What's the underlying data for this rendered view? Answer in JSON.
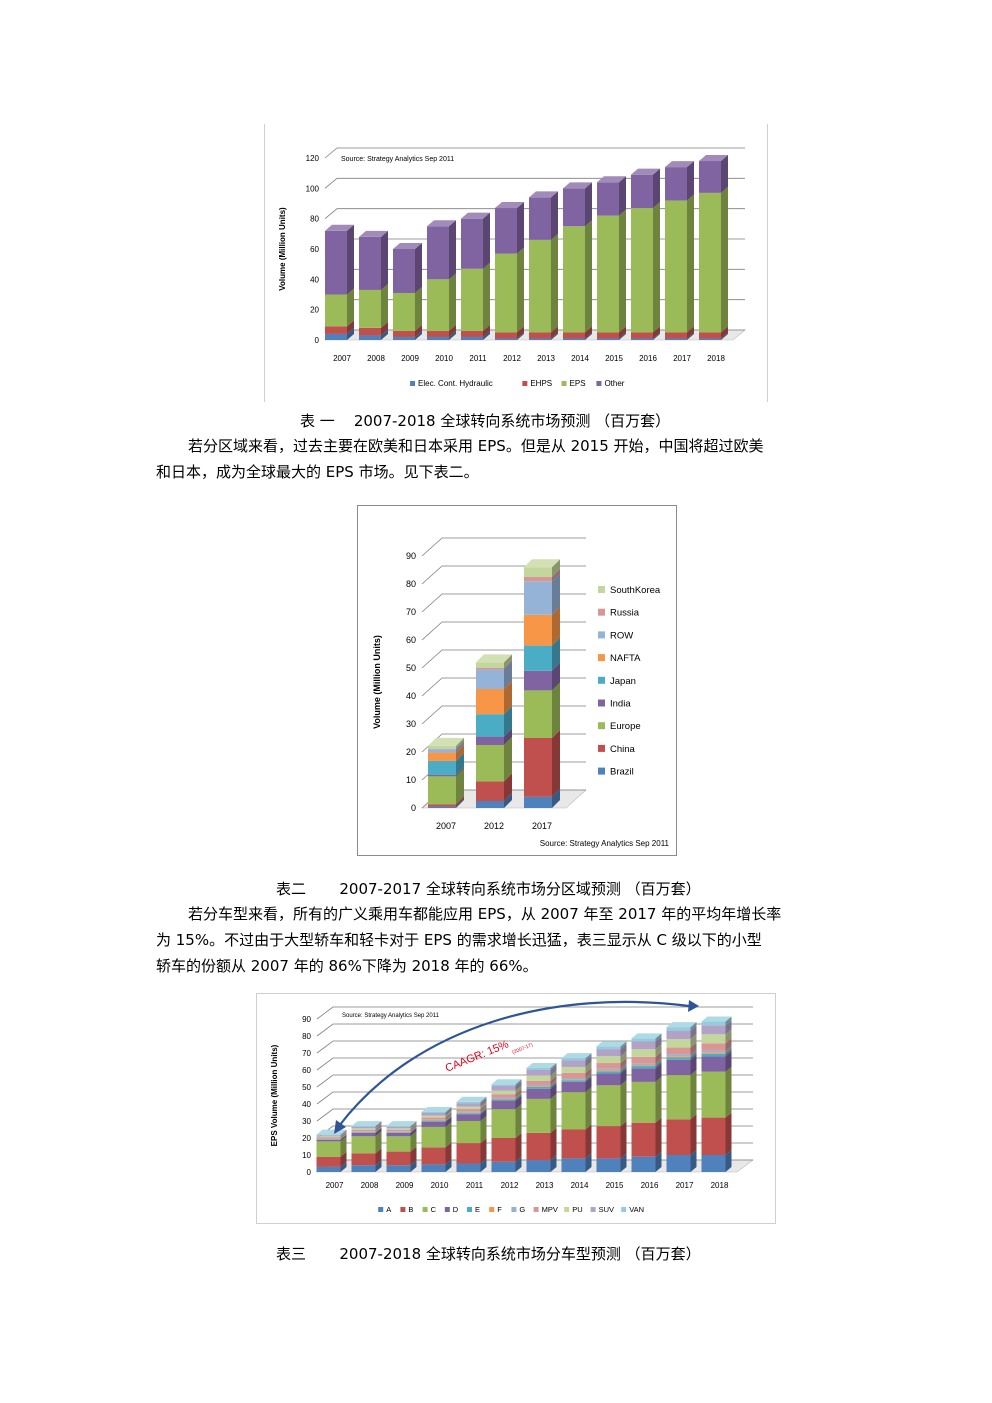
{
  "figures": [
    {
      "caption": "表 一    2007-2018 全球转向系统市场预测 （百万套）",
      "chart_data": {
        "type": "bar",
        "stacked": true,
        "annotation": "Source: Strategy Analytics Sep 2011",
        "ylabel": "Volume (Million Units)",
        "ylim": [
          0,
          120
        ],
        "yticks": [
          0,
          20,
          40,
          60,
          80,
          100,
          120
        ],
        "categories": [
          "2007",
          "2008",
          "2009",
          "2010",
          "2011",
          "2012",
          "2013",
          "2014",
          "2015",
          "2016",
          "2017",
          "2018"
        ],
        "series": [
          {
            "name": "Elec. Cont. Hydraulic",
            "color": "#4f81bd",
            "values": [
              4,
              3,
              2,
              2,
              2,
              1,
              1,
              1,
              1,
              1,
              1,
              1
            ]
          },
          {
            "name": "EHPS",
            "color": "#c0504d",
            "values": [
              5,
              5,
              4,
              4,
              4,
              4,
              4,
              4,
              4,
              4,
              4,
              4
            ]
          },
          {
            "name": "EPS",
            "color": "#9bbb59",
            "values": [
              21,
              25,
              25,
              34,
              41,
              52,
              61,
              70,
              77,
              82,
              87,
              92
            ]
          },
          {
            "name": "Other",
            "color": "#8064a2",
            "values": [
              42,
              35,
              29,
              35,
              33,
              30,
              28,
              25,
              22,
              22,
              22,
              21
            ]
          }
        ],
        "legend": "bottom",
        "grid": true
      }
    },
    {
      "caption": "表二       2007-2017 全球转向系统市场分区域预测 （百万套）",
      "chart_data": {
        "type": "bar",
        "stacked": true,
        "annotation": "Source: Strategy Analytics Sep 2011",
        "ylabel": "Volume (Million Units)",
        "ylim": [
          0,
          90
        ],
        "yticks": [
          0,
          10,
          20,
          30,
          40,
          50,
          60,
          70,
          80,
          90
        ],
        "categories": [
          "2007",
          "2012",
          "2017"
        ],
        "series": [
          {
            "name": "Brazil",
            "color": "#4f81bd",
            "values": [
              0.5,
              2.5,
              4
            ]
          },
          {
            "name": "China",
            "color": "#c0504d",
            "values": [
              0.8,
              7,
              21
            ]
          },
          {
            "name": "Europe",
            "color": "#9bbb59",
            "values": [
              10,
              13,
              17
            ]
          },
          {
            "name": "India",
            "color": "#8064a2",
            "values": [
              0.5,
              3,
              7
            ]
          },
          {
            "name": "Japan",
            "color": "#4bacc6",
            "values": [
              5,
              8,
              9
            ]
          },
          {
            "name": "NAFTA",
            "color": "#f79646",
            "values": [
              3,
              9,
              11
            ]
          },
          {
            "name": "ROW",
            "color": "#95b3d7",
            "values": [
              1.2,
              7,
              12
            ]
          },
          {
            "name": "Russia",
            "color": "#d99694",
            "values": [
              0.2,
              0.5,
              1.5
            ]
          },
          {
            "name": "SouthKorea",
            "color": "#c3d69b",
            "values": [
              1,
              2,
              3.5
            ]
          }
        ],
        "legend": "right",
        "grid": true
      }
    },
    {
      "caption": "表三       2007-2018 全球转向系统市场分车型预测 （百万套）",
      "chart_data": {
        "type": "bar",
        "stacked": true,
        "annotation": "Source: Strategy Analytics Sep 2011",
        "arrow_label": "CAAGR: 15%",
        "arrow_sub": "(2007-17)",
        "ylabel": "EPS Volume (Million Units)",
        "ylim": [
          0,
          90
        ],
        "yticks": [
          0,
          10,
          20,
          30,
          40,
          50,
          60,
          70,
          80,
          90
        ],
        "categories": [
          "2007",
          "2008",
          "2009",
          "2010",
          "2011",
          "2012",
          "2013",
          "2014",
          "2015",
          "2016",
          "2017",
          "2018"
        ],
        "series": [
          {
            "name": "A",
            "color": "#4f81bd",
            "values": [
              3,
              4,
              4,
              4.5,
              5,
              6,
              7,
              8,
              8,
              9,
              10,
              10
            ]
          },
          {
            "name": "B",
            "color": "#c0504d",
            "values": [
              6,
              7,
              8,
              10,
              12,
              14,
              16,
              17,
              19,
              20,
              21,
              22
            ]
          },
          {
            "name": "C",
            "color": "#9bbb59",
            "values": [
              9,
              10,
              9,
              12,
              13,
              17,
              20,
              22,
              24,
              24,
              26,
              27
            ]
          },
          {
            "name": "D",
            "color": "#8064a2",
            "values": [
              1,
              2,
              2,
              3,
              4,
              5,
              6,
              6,
              7,
              8,
              9,
              9
            ]
          },
          {
            "name": "E",
            "color": "#4bacc6",
            "values": [
              0.3,
              0.4,
              0.4,
              0.5,
              0.6,
              0.8,
              1,
              1,
              1.2,
              1.3,
              1.4,
              1.5
            ]
          },
          {
            "name": "F",
            "color": "#f79646",
            "values": [
              0.2,
              0.2,
              0.2,
              0.3,
              0.3,
              0.4,
              0.5,
              0.5,
              0.6,
              0.6,
              0.7,
              0.7
            ]
          },
          {
            "name": "G",
            "color": "#95b3d7",
            "values": [
              0.2,
              0.3,
              0.3,
              0.4,
              0.5,
              0.6,
              0.7,
              0.8,
              0.9,
              1,
              1.1,
              1.2
            ]
          },
          {
            "name": "MPV",
            "color": "#d99694",
            "values": [
              0.8,
              1,
              1,
              1.3,
              1.6,
              2,
              2.5,
              3,
              3.4,
              3.8,
              4,
              4.3
            ]
          },
          {
            "name": "PU",
            "color": "#c3d69b",
            "values": [
              0.5,
              0.8,
              0.8,
              1.2,
              1.5,
              2,
              3,
              3.5,
              4,
              4.5,
              5,
              5.3
            ]
          },
          {
            "name": "SUV",
            "color": "#b2a2c7",
            "values": [
              0.6,
              0.8,
              0.8,
              1.5,
              2,
              2.8,
              3.3,
              3.8,
              4.2,
              4.6,
              5,
              5.3
            ]
          },
          {
            "name": "VAN",
            "color": "#93cddd",
            "values": [
              0.4,
              0.5,
              0.5,
              0.6,
              0.8,
              1,
              1.2,
              1.4,
              1.6,
              1.8,
              2,
              2.2
            ]
          }
        ],
        "legend": "bottom",
        "grid": true
      }
    }
  ],
  "paragraphs": [
    {
      "lines": [
        "若分区域来看，过去主要在欧美和日本采用 EPS。但是从 2015 开始，中国将超过欧美",
        "和日本，成为全球最大的 EPS 市场。见下表二。"
      ]
    },
    {
      "lines": [
        "若分车型来看，所有的广义乘用车都能应用 EPS，从 2007 年至 2017 年的平均年增长率",
        "为 15%。不过由于大型轿车和轻卡对于 EPS 的需求增长迅猛，表三显示从 C 级以下的小型",
        "轿车的份额从 2007 年的 86%下降为 2018 年的 66%。"
      ]
    }
  ]
}
